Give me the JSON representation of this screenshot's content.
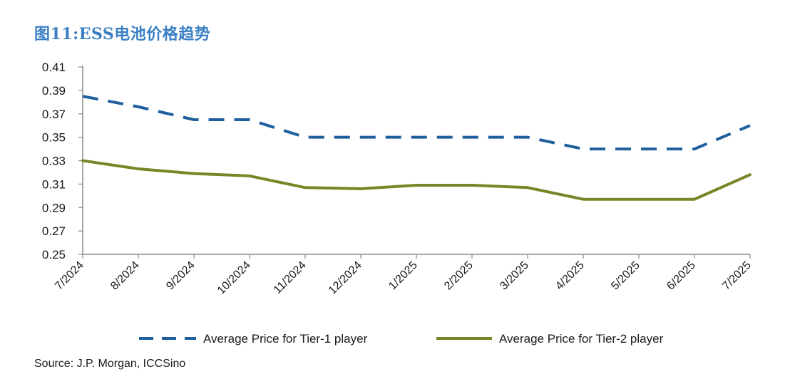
{
  "title": "图11:ESS电池价格趋势",
  "source": "Source: J.P. Morgan, ICCSino",
  "colors": {
    "title": "#3a7fc4",
    "tier1": "#1f5f9e",
    "tier2": "#7b8427",
    "axis": "#8a8a8a",
    "text": "#1a1a1a"
  },
  "chart_data": {
    "type": "line",
    "categories": [
      "7/2024",
      "8/2024",
      "9/2024",
      "10/2024",
      "11/2024",
      "12/2024",
      "1/2025",
      "2/2025",
      "3/2025",
      "4/2025",
      "5/2025",
      "6/2025",
      "7/2025"
    ],
    "ylim": [
      0.25,
      0.41
    ],
    "yticks": [
      "0.41",
      "0.39",
      "0.37",
      "0.35",
      "0.33",
      "0.31",
      "0.29",
      "0.27",
      "0.25"
    ],
    "grid": false,
    "legend_position": "bottom",
    "series": [
      {
        "name": "Average Price for Tier-1 player",
        "style": "dashed",
        "values": [
          0.385,
          0.376,
          0.365,
          0.365,
          0.35,
          0.35,
          0.35,
          0.35,
          0.35,
          0.34,
          0.34,
          0.34,
          0.36
        ]
      },
      {
        "name": "Average Price for Tier-2 player",
        "style": "solid",
        "values": [
          0.33,
          0.323,
          0.319,
          0.317,
          0.307,
          0.306,
          0.309,
          0.309,
          0.307,
          0.297,
          0.297,
          0.297,
          0.318
        ]
      }
    ]
  }
}
